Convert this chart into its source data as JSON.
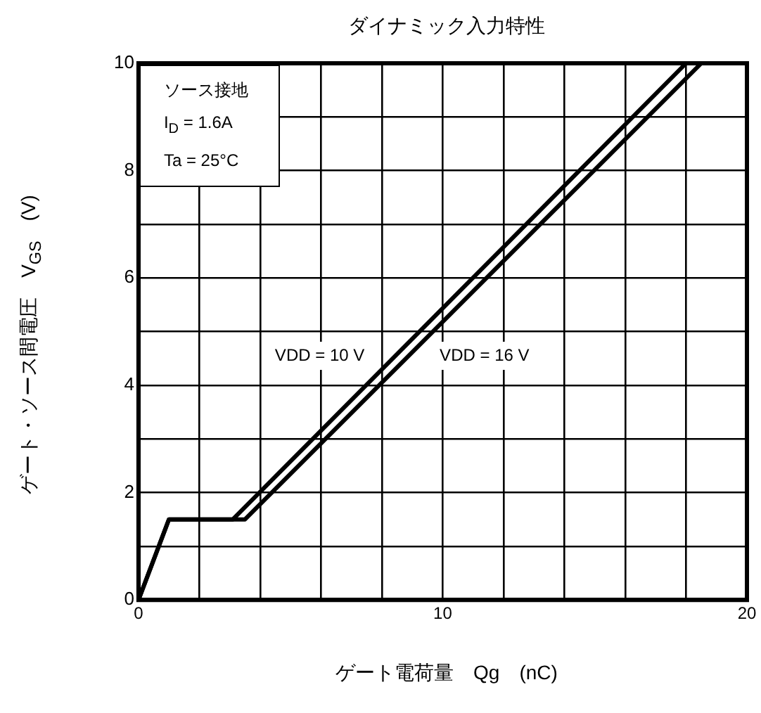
{
  "chart_data": {
    "type": "line",
    "title": "ダイナミック入力特性",
    "xlabel": "ゲート電荷量　Qg　(nC)",
    "ylabel": "ゲート・ソース間電圧　V$_{GS}$　(V)",
    "series": [
      {
        "name": "VDD = 10 V",
        "color": "#000000",
        "x": [
          0,
          1.0,
          3.1,
          18.0
        ],
        "values": [
          0,
          1.5,
          1.5,
          10
        ]
      },
      {
        "name": "VDD = 16 V",
        "color": "#000000",
        "x": [
          0,
          1.0,
          3.5,
          18.5
        ],
        "values": [
          0,
          1.5,
          1.5,
          10
        ]
      }
    ],
    "xlim": [
      0,
      20
    ],
    "xticks": [
      0,
      {
        "value": 2,
        "label": null
      },
      {
        "value": 4,
        "label": null
      },
      {
        "value": 6,
        "label": null
      },
      {
        "value": 8,
        "label": null
      },
      10,
      {
        "value": 12,
        "label": null
      },
      {
        "value": 14,
        "label": null
      },
      {
        "value": 16,
        "label": null
      },
      {
        "value": 18,
        "label": null
      },
      20
    ],
    "ylim": [
      0,
      10
    ],
    "yticks": [
      0,
      {
        "value": 1,
        "label": null
      },
      2,
      {
        "value": 3,
        "label": null
      },
      4,
      {
        "value": 5,
        "label": null
      },
      6,
      {
        "value": 7,
        "label": null
      },
      8,
      {
        "value": 9,
        "label": null
      },
      10
    ],
    "annotations": [
      "ソース接地",
      "I$_{D}$ = 1.6A",
      "Ta = 25°C"
    ],
    "grid": true,
    "legend": false,
    "marker": "none",
    "line_style": "solid"
  }
}
